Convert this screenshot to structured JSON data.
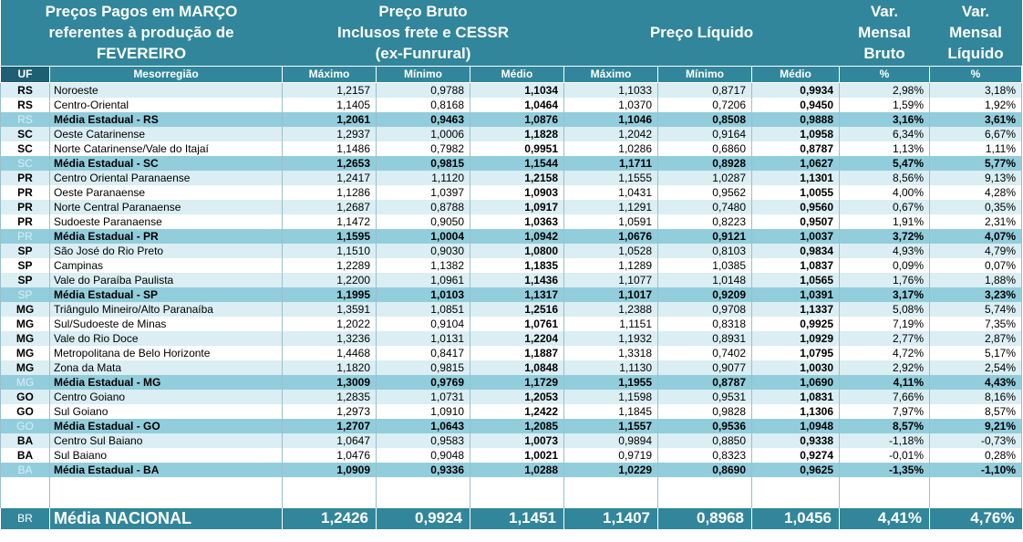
{
  "header": {
    "title_line1": "Preços Pagos em MARÇO",
    "title_line2": "referentes à produção de",
    "title_line3": "FEVEREIRO",
    "bruto_line1": "Preço Bruto",
    "bruto_line2": "Inclusos frete e CESSR",
    "bruto_line3": "(ex-Funrural)",
    "liquido": "Preço Líquido",
    "var_bruto_line1": "Var.",
    "var_bruto_line2": "Mensal",
    "var_bruto_line3": "Bruto",
    "var_liq_line1": "Var.",
    "var_liq_line2": "Mensal",
    "var_liq_line3": "Líquido"
  },
  "columns": [
    "UF",
    "Mesorregião",
    "Máximo",
    "Mínimo",
    "Médio",
    "Máximo",
    "Mínimo",
    "Médio",
    "%",
    "%"
  ],
  "rows": [
    {
      "uf": "RS",
      "meso": "Noroeste",
      "bmax": "1,2157",
      "bmin": "0,9788",
      "bmed": "1,1034",
      "lmax": "1,1033",
      "lmin": "0,8717",
      "lmed": "0,9934",
      "vb": "2,98%",
      "vl": "3,18%",
      "type": "even"
    },
    {
      "uf": "RS",
      "meso": "Centro-Oriental",
      "bmax": "1,1405",
      "bmin": "0,8168",
      "bmed": "1,0464",
      "lmax": "1,0370",
      "lmin": "0,7206",
      "lmed": "0,9450",
      "vb": "1,59%",
      "vl": "1,92%",
      "type": "odd"
    },
    {
      "uf": "RS",
      "meso": "Média Estadual - RS",
      "bmax": "1,2061",
      "bmin": "0,9463",
      "bmed": "1,0876",
      "lmax": "1,1046",
      "lmin": "0,8508",
      "lmed": "0,9888",
      "vb": "3,16%",
      "vl": "3,61%",
      "type": "avg"
    },
    {
      "uf": "SC",
      "meso": "Oeste Catarinense",
      "bmax": "1,2937",
      "bmin": "1,0006",
      "bmed": "1,1828",
      "lmax": "1,2042",
      "lmin": "0,9164",
      "lmed": "1,0958",
      "vb": "6,34%",
      "vl": "6,67%",
      "type": "even"
    },
    {
      "uf": "SC",
      "meso": "Norte Catarinense/Vale do Itajaí",
      "bmax": "1,1486",
      "bmin": "0,7982",
      "bmed": "0,9951",
      "lmax": "1,0286",
      "lmin": "0,6860",
      "lmed": "0,8787",
      "vb": "1,13%",
      "vl": "1,11%",
      "type": "odd"
    },
    {
      "uf": "SC",
      "meso": "Média Estadual - SC",
      "bmax": "1,2653",
      "bmin": "0,9815",
      "bmed": "1,1544",
      "lmax": "1,1711",
      "lmin": "0,8928",
      "lmed": "1,0627",
      "vb": "5,47%",
      "vl": "5,77%",
      "type": "avg"
    },
    {
      "uf": "PR",
      "meso": "Centro Oriental Paranaense",
      "bmax": "1,2417",
      "bmin": "1,1120",
      "bmed": "1,2158",
      "lmax": "1,1555",
      "lmin": "1,0287",
      "lmed": "1,1301",
      "vb": "8,56%",
      "vl": "9,13%",
      "type": "even"
    },
    {
      "uf": "PR",
      "meso": "Oeste Paranaense",
      "bmax": "1,1286",
      "bmin": "1,0397",
      "bmed": "1,0903",
      "lmax": "1,0431",
      "lmin": "0,9562",
      "lmed": "1,0055",
      "vb": "4,00%",
      "vl": "4,28%",
      "type": "odd"
    },
    {
      "uf": "PR",
      "meso": "Norte Central Paranaense",
      "bmax": "1,2687",
      "bmin": "0,8788",
      "bmed": "1,0917",
      "lmax": "1,1291",
      "lmin": "0,7480",
      "lmed": "0,9560",
      "vb": "0,67%",
      "vl": "0,35%",
      "type": "even"
    },
    {
      "uf": "PR",
      "meso": "Sudoeste Paranaense",
      "bmax": "1,1472",
      "bmin": "0,9050",
      "bmed": "1,0363",
      "lmax": "1,0591",
      "lmin": "0,8223",
      "lmed": "0,9507",
      "vb": "1,91%",
      "vl": "2,31%",
      "type": "odd"
    },
    {
      "uf": "PR",
      "meso": "Média Estadual - PR",
      "bmax": "1,1595",
      "bmin": "1,0004",
      "bmed": "1,0942",
      "lmax": "1,0676",
      "lmin": "0,9121",
      "lmed": "1,0037",
      "vb": "3,72%",
      "vl": "4,07%",
      "type": "avg"
    },
    {
      "uf": "SP",
      "meso": "São José do Rio Preto",
      "bmax": "1,1510",
      "bmin": "0,9030",
      "bmed": "1,0800",
      "lmax": "1,0528",
      "lmin": "0,8103",
      "lmed": "0,9834",
      "vb": "4,93%",
      "vl": "4,79%",
      "type": "even"
    },
    {
      "uf": "SP",
      "meso": "Campinas",
      "bmax": "1,2289",
      "bmin": "1,1382",
      "bmed": "1,1835",
      "lmax": "1,1289",
      "lmin": "1,0385",
      "lmed": "1,0837",
      "vb": "0,09%",
      "vl": "0,07%",
      "type": "odd"
    },
    {
      "uf": "SP",
      "meso": "Vale do Paraíba Paulista",
      "bmax": "1,2200",
      "bmin": "1,0961",
      "bmed": "1,1436",
      "lmax": "1,1077",
      "lmin": "1,0148",
      "lmed": "1,0565",
      "vb": "1,76%",
      "vl": "1,88%",
      "type": "even"
    },
    {
      "uf": "SP",
      "meso": "Média Estadual - SP",
      "bmax": "1,1995",
      "bmin": "1,0103",
      "bmed": "1,1317",
      "lmax": "1,1017",
      "lmin": "0,9209",
      "lmed": "1,0391",
      "vb": "3,17%",
      "vl": "3,23%",
      "type": "avg"
    },
    {
      "uf": "MG",
      "meso": "Triângulo Mineiro/Alto Paranaíba",
      "bmax": "1,3591",
      "bmin": "1,0851",
      "bmed": "1,2516",
      "lmax": "1,2388",
      "lmin": "0,9708",
      "lmed": "1,1337",
      "vb": "5,08%",
      "vl": "5,74%",
      "type": "even"
    },
    {
      "uf": "MG",
      "meso": "Sul/Sudoeste de Minas",
      "bmax": "1,2022",
      "bmin": "0,9104",
      "bmed": "1,0761",
      "lmax": "1,1151",
      "lmin": "0,8318",
      "lmed": "0,9925",
      "vb": "7,19%",
      "vl": "7,35%",
      "type": "odd"
    },
    {
      "uf": "MG",
      "meso": "Vale do Rio Doce",
      "bmax": "1,3236",
      "bmin": "1,0131",
      "bmed": "1,2204",
      "lmax": "1,1932",
      "lmin": "0,8931",
      "lmed": "1,0929",
      "vb": "2,77%",
      "vl": "2,87%",
      "type": "even"
    },
    {
      "uf": "MG",
      "meso": "Metropolitana de Belo Horizonte",
      "bmax": "1,4468",
      "bmin": "0,8417",
      "bmed": "1,1887",
      "lmax": "1,3318",
      "lmin": "0,7402",
      "lmed": "1,0795",
      "vb": "4,72%",
      "vl": "5,17%",
      "type": "odd"
    },
    {
      "uf": "MG",
      "meso": "Zona da Mata",
      "bmax": "1,1820",
      "bmin": "0,9815",
      "bmed": "1,0848",
      "lmax": "1,1130",
      "lmin": "0,9077",
      "lmed": "1,0030",
      "vb": "2,92%",
      "vl": "2,54%",
      "type": "even"
    },
    {
      "uf": "MG",
      "meso": "Média Estadual - MG",
      "bmax": "1,3009",
      "bmin": "0,9769",
      "bmed": "1,1729",
      "lmax": "1,1955",
      "lmin": "0,8787",
      "lmed": "1,0690",
      "vb": "4,11%",
      "vl": "4,43%",
      "type": "avg"
    },
    {
      "uf": "GO",
      "meso": "Centro Goiano",
      "bmax": "1,2835",
      "bmin": "1,0731",
      "bmed": "1,2053",
      "lmax": "1,1598",
      "lmin": "0,9531",
      "lmed": "1,0831",
      "vb": "7,66%",
      "vl": "8,16%",
      "type": "even"
    },
    {
      "uf": "GO",
      "meso": "Sul Goiano",
      "bmax": "1,2973",
      "bmin": "1,0910",
      "bmed": "1,2422",
      "lmax": "1,1845",
      "lmin": "0,9828",
      "lmed": "1,1306",
      "vb": "7,97%",
      "vl": "8,57%",
      "type": "odd"
    },
    {
      "uf": "GO",
      "meso": "Média Estadual - GO",
      "bmax": "1,2707",
      "bmin": "1,0643",
      "bmed": "1,2085",
      "lmax": "1,1557",
      "lmin": "0,9536",
      "lmed": "1,0948",
      "vb": "8,57%",
      "vl": "9,21%",
      "type": "avg"
    },
    {
      "uf": "BA",
      "meso": "Centro Sul Baiano",
      "bmax": "1,0647",
      "bmin": "0,9583",
      "bmed": "1,0073",
      "lmax": "0,9894",
      "lmin": "0,8850",
      "lmed": "0,9338",
      "vb": "-1,18%",
      "vl": "-0,73%",
      "type": "even"
    },
    {
      "uf": "BA",
      "meso": "Sul Baiano",
      "bmax": "1,0476",
      "bmin": "0,9048",
      "bmed": "1,0021",
      "lmax": "0,9719",
      "lmin": "0,8323",
      "lmed": "0,9274",
      "vb": "-0,01%",
      "vl": "0,28%",
      "type": "odd"
    },
    {
      "uf": "BA",
      "meso": "Média Estadual - BA",
      "bmax": "1,0909",
      "bmin": "0,9336",
      "bmed": "1,0288",
      "lmax": "1,0229",
      "lmin": "0,8690",
      "lmed": "0,9625",
      "vb": "-1,35%",
      "vl": "-1,10%",
      "type": "avg"
    }
  ],
  "national": {
    "uf": "BR",
    "meso": "Média NACIONAL",
    "bmax": "1,2426",
    "bmin": "0,9924",
    "bmed": "1,1451",
    "lmax": "1,1407",
    "lmin": "0,8968",
    "lmed": "1,0456",
    "vb": "4,41%",
    "vl": "4,76%"
  },
  "colors": {
    "header": "#31869b",
    "avg_row": "#92cddc",
    "even_row": "#daeef3",
    "uf_header": "#1e5f74"
  }
}
